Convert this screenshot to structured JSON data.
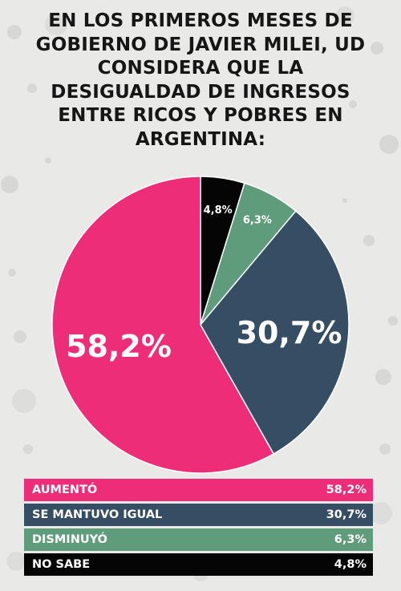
{
  "title_lines": [
    "EN LOS PRIMEROS MESES DE",
    "GOBIERNO DE JAVIER MILEI, UD",
    "CONSIDERA QUE LA",
    "DESIGUALDAD DE INGRESOS",
    "ENTRE RICOS Y POBRES EN",
    "ARGENTINA:"
  ],
  "colors": {
    "background": "#e9e9e7",
    "aumento": "#ee2d79",
    "se_mantuvo_igual": "#354e63",
    "disminuyo": "#5f9c7c",
    "no_sabe": "#050505"
  },
  "chart_data": {
    "type": "pie",
    "title": "EN LOS PRIMEROS MESES DE GOBIERNO DE JAVIER MILEI, UD CONSIDERA QUE LA DESIGUALDAD DE INGRESOS ENTRE RICOS Y POBRES EN ARGENTINA:",
    "start": "12 o'clock, clockwise",
    "slices": [
      {
        "label": "NO SABE",
        "value": 4.8,
        "display": "4,8%",
        "color": "#050505"
      },
      {
        "label": "DISMINUYÓ",
        "value": 6.3,
        "display": "6,3%",
        "color": "#5f9c7c"
      },
      {
        "label": "SE MANTUVO IGUAL",
        "value": 30.7,
        "display": "30,7%",
        "color": "#354e63"
      },
      {
        "label": "AUMENTÓ",
        "value": 58.2,
        "display": "58,2%",
        "color": "#ee2d79"
      }
    ]
  },
  "legend": [
    {
      "label": "AUMENTÓ",
      "value": "58,2%",
      "color": "#ee2d79"
    },
    {
      "label": "SE MANTUVO IGUAL",
      "value": "30,7%",
      "color": "#354e63"
    },
    {
      "label": "DISMINUYÓ",
      "value": "6,3%",
      "color": "#5f9c7c"
    },
    {
      "label": "NO SABE",
      "value": "4,8%",
      "color": "#050505"
    }
  ]
}
